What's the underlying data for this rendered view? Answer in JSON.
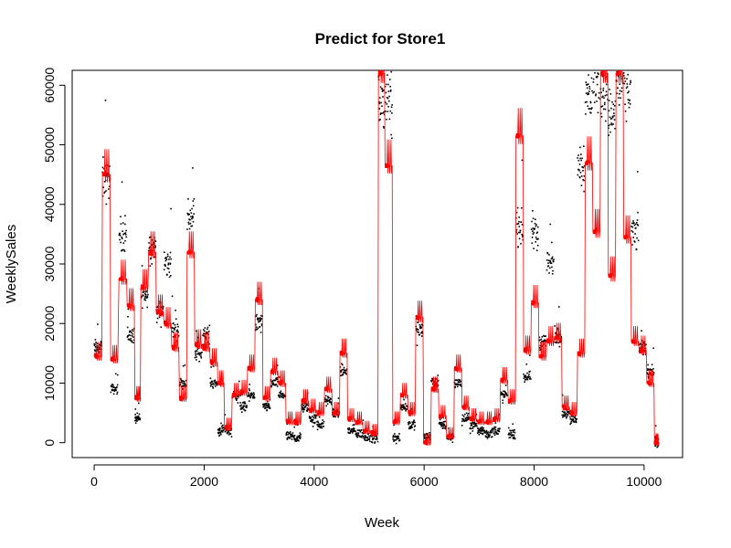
{
  "chart_data": {
    "type": "scatter",
    "title": "Predict for Store1",
    "xlabel": "Week",
    "ylabel": "WeeklySales",
    "xlim": [
      -400,
      10700
    ],
    "ylim": [
      -2500,
      62500
    ],
    "xticks": [
      0,
      2000,
      4000,
      6000,
      8000,
      10000
    ],
    "yticks": [
      0,
      10000,
      20000,
      30000,
      40000,
      50000,
      60000
    ],
    "grid": false,
    "series": [
      {
        "role": "actual",
        "color": "#000000",
        "style": "points",
        "segments": [
          {
            "x": [
              0,
              140
            ],
            "y": 16000
          },
          {
            "x": [
              150,
              290
            ],
            "y": 44000
          },
          {
            "x": [
              300,
              430
            ],
            "y": 9000
          },
          {
            "x": [
              450,
              590
            ],
            "y": 35000
          },
          {
            "x": [
              600,
              730
            ],
            "y": 18000
          },
          {
            "x": [
              740,
              840
            ],
            "y": 4000
          },
          {
            "x": [
              850,
              980
            ],
            "y": 25000
          },
          {
            "x": [
              990,
              1120
            ],
            "y": 33000
          },
          {
            "x": [
              1130,
              1260
            ],
            "y": 22000
          },
          {
            "x": [
              1270,
              1400
            ],
            "y": 30000
          },
          {
            "x": [
              1410,
              1540
            ],
            "y": 19000
          },
          {
            "x": [
              1550,
              1680
            ],
            "y": 10000
          },
          {
            "x": [
              1690,
              1820
            ],
            "y": 38000
          },
          {
            "x": [
              1830,
              1960
            ],
            "y": 15000
          },
          {
            "x": [
              1970,
              2100
            ],
            "y": 18000
          },
          {
            "x": [
              2110,
              2240
            ],
            "y": 10000
          },
          {
            "x": [
              2250,
              2360
            ],
            "y": 2000
          },
          {
            "x": [
              2370,
              2500
            ],
            "y": 2000
          },
          {
            "x": [
              2510,
              2640
            ],
            "y": 8000
          },
          {
            "x": [
              2650,
              2780
            ],
            "y": 6000
          },
          {
            "x": [
              2790,
              2920
            ],
            "y": 8000
          },
          {
            "x": [
              2930,
              3060
            ],
            "y": 20000
          },
          {
            "x": [
              3070,
              3200
            ],
            "y": 6000
          },
          {
            "x": [
              3210,
              3340
            ],
            "y": 10000
          },
          {
            "x": [
              3350,
              3480
            ],
            "y": 8000
          },
          {
            "x": [
              3490,
              3620
            ],
            "y": 1000
          },
          {
            "x": [
              3630,
              3760
            ],
            "y": 800
          },
          {
            "x": [
              3770,
              3900
            ],
            "y": 6000
          },
          {
            "x": [
              3910,
              4040
            ],
            "y": 4000
          },
          {
            "x": [
              4050,
              4180
            ],
            "y": 3000
          },
          {
            "x": [
              4190,
              4320
            ],
            "y": 7000
          },
          {
            "x": [
              4330,
              4460
            ],
            "y": 5000
          },
          {
            "x": [
              4470,
              4600
            ],
            "y": 12000
          },
          {
            "x": [
              4610,
              4740
            ],
            "y": 2000
          },
          {
            "x": [
              4750,
              4880
            ],
            "y": 1500
          },
          {
            "x": [
              4890,
              5020
            ],
            "y": 1000
          },
          {
            "x": [
              5030,
              5160
            ],
            "y": 800
          },
          {
            "x": [
              5170,
              5280
            ],
            "y": 57000
          },
          {
            "x": [
              5290,
              5420
            ],
            "y": 58000
          },
          {
            "x": [
              5430,
              5560
            ],
            "y": 1000
          },
          {
            "x": [
              5570,
              5700
            ],
            "y": 6000
          },
          {
            "x": [
              5710,
              5840
            ],
            "y": 3000
          },
          {
            "x": [
              5850,
              5980
            ],
            "y": 19000
          },
          {
            "x": [
              5990,
              6120
            ],
            "y": 1000
          },
          {
            "x": [
              6130,
              6260
            ],
            "y": 10000
          },
          {
            "x": [
              6270,
              6400
            ],
            "y": 3000
          },
          {
            "x": [
              6410,
              6540
            ],
            "y": 1000
          },
          {
            "x": [
              6550,
              6680
            ],
            "y": 10000
          },
          {
            "x": [
              6690,
              6820
            ],
            "y": 4000
          },
          {
            "x": [
              6830,
              6960
            ],
            "y": 3000
          },
          {
            "x": [
              6970,
              7100
            ],
            "y": 2000
          },
          {
            "x": [
              7110,
              7240
            ],
            "y": 1500
          },
          {
            "x": [
              7250,
              7380
            ],
            "y": 2000
          },
          {
            "x": [
              7390,
              7520
            ],
            "y": 8000
          },
          {
            "x": [
              7530,
              7660
            ],
            "y": 1500
          },
          {
            "x": [
              7670,
              7800
            ],
            "y": 36000
          },
          {
            "x": [
              7810,
              7940
            ],
            "y": 11000
          },
          {
            "x": [
              7950,
              8080
            ],
            "y": 35000
          },
          {
            "x": [
              8090,
              8220
            ],
            "y": 17000
          },
          {
            "x": [
              8230,
              8360
            ],
            "y": 30000
          },
          {
            "x": [
              8370,
              8500
            ],
            "y": 18000
          },
          {
            "x": [
              8510,
              8640
            ],
            "y": 5000
          },
          {
            "x": [
              8650,
              8780
            ],
            "y": 4000
          },
          {
            "x": [
              8790,
              8920
            ],
            "y": 47000
          },
          {
            "x": [
              8930,
              9060
            ],
            "y": 58000
          },
          {
            "x": [
              9070,
              9200
            ],
            "y": 61000
          },
          {
            "x": [
              9210,
              9340
            ],
            "y": 59000
          },
          {
            "x": [
              9350,
              9480
            ],
            "y": 55000
          },
          {
            "x": [
              9490,
              9620
            ],
            "y": 60000
          },
          {
            "x": [
              9630,
              9760
            ],
            "y": 59000
          },
          {
            "x": [
              9770,
              9900
            ],
            "y": 35000
          },
          {
            "x": [
              9910,
              10040
            ],
            "y": 16000
          },
          {
            "x": [
              10050,
              10180
            ],
            "y": 12000
          },
          {
            "x": [
              10190,
              10260
            ],
            "y": 0
          }
        ]
      },
      {
        "role": "predicted",
        "color": "#ff0000",
        "style": "line+points",
        "segments": [
          {
            "x": [
              0,
              140
            ],
            "y": 14500
          },
          {
            "x": [
              150,
              290
            ],
            "y": 45000
          },
          {
            "x": [
              300,
              430
            ],
            "y": 14000
          },
          {
            "x": [
              450,
              590
            ],
            "y": 27500
          },
          {
            "x": [
              600,
              730
            ],
            "y": 23000
          },
          {
            "x": [
              740,
              840
            ],
            "y": 7500
          },
          {
            "x": [
              850,
              980
            ],
            "y": 26000
          },
          {
            "x": [
              990,
              1120
            ],
            "y": 32000
          },
          {
            "x": [
              1130,
              1260
            ],
            "y": 22000
          },
          {
            "x": [
              1270,
              1400
            ],
            "y": 20000
          },
          {
            "x": [
              1410,
              1540
            ],
            "y": 16000
          },
          {
            "x": [
              1550,
              1680
            ],
            "y": 7500
          },
          {
            "x": [
              1690,
              1820
            ],
            "y": 32000
          },
          {
            "x": [
              1830,
              1960
            ],
            "y": 16500
          },
          {
            "x": [
              1970,
              2100
            ],
            "y": 16000
          },
          {
            "x": [
              2110,
              2240
            ],
            "y": 13500
          },
          {
            "x": [
              2250,
              2360
            ],
            "y": 10000
          },
          {
            "x": [
              2370,
              2500
            ],
            "y": 2500
          },
          {
            "x": [
              2510,
              2640
            ],
            "y": 8000
          },
          {
            "x": [
              2650,
              2780
            ],
            "y": 8500
          },
          {
            "x": [
              2790,
              2920
            ],
            "y": 12500
          },
          {
            "x": [
              2930,
              3060
            ],
            "y": 24000
          },
          {
            "x": [
              3070,
              3200
            ],
            "y": 7500
          },
          {
            "x": [
              3210,
              3340
            ],
            "y": 12000
          },
          {
            "x": [
              3350,
              3480
            ],
            "y": 10000
          },
          {
            "x": [
              3490,
              3620
            ],
            "y": 3500
          },
          {
            "x": [
              3630,
              3760
            ],
            "y": 3500
          },
          {
            "x": [
              3770,
              3900
            ],
            "y": 7000
          },
          {
            "x": [
              3910,
              4040
            ],
            "y": 5500
          },
          {
            "x": [
              4050,
              4180
            ],
            "y": 5000
          },
          {
            "x": [
              4190,
              4320
            ],
            "y": 9000
          },
          {
            "x": [
              4330,
              4460
            ],
            "y": 5000
          },
          {
            "x": [
              4470,
              4600
            ],
            "y": 15000
          },
          {
            "x": [
              4610,
              4740
            ],
            "y": 4000
          },
          {
            "x": [
              4750,
              4880
            ],
            "y": 3500
          },
          {
            "x": [
              4890,
              5020
            ],
            "y": 2000
          },
          {
            "x": [
              5030,
              5160
            ],
            "y": 1500
          },
          {
            "x": [
              5170,
              5280
            ],
            "y": 62000
          },
          {
            "x": [
              5290,
              5420
            ],
            "y": 46500
          },
          {
            "x": [
              5430,
              5560
            ],
            "y": 3500
          },
          {
            "x": [
              5570,
              5700
            ],
            "y": 8000
          },
          {
            "x": [
              5710,
              5840
            ],
            "y": 5000
          },
          {
            "x": [
              5850,
              5980
            ],
            "y": 21000
          },
          {
            "x": [
              5990,
              6120
            ],
            "y": 0
          },
          {
            "x": [
              6130,
              6260
            ],
            "y": 9000
          },
          {
            "x": [
              6270,
              6400
            ],
            "y": 4500
          },
          {
            "x": [
              6410,
              6540
            ],
            "y": 1000
          },
          {
            "x": [
              6550,
              6680
            ],
            "y": 12500
          },
          {
            "x": [
              6690,
              6820
            ],
            "y": 6000
          },
          {
            "x": [
              6830,
              6960
            ],
            "y": 4000
          },
          {
            "x": [
              6970,
              7100
            ],
            "y": 3500
          },
          {
            "x": [
              7110,
              7240
            ],
            "y": 3500
          },
          {
            "x": [
              7250,
              7380
            ],
            "y": 4000
          },
          {
            "x": [
              7390,
              7520
            ],
            "y": 10500
          },
          {
            "x": [
              7530,
              7660
            ],
            "y": 7000
          },
          {
            "x": [
              7670,
              7800
            ],
            "y": 51500
          },
          {
            "x": [
              7810,
              7940
            ],
            "y": 15500
          },
          {
            "x": [
              7950,
              8080
            ],
            "y": 23500
          },
          {
            "x": [
              8090,
              8220
            ],
            "y": 14500
          },
          {
            "x": [
              8230,
              8360
            ],
            "y": 17000
          },
          {
            "x": [
              8370,
              8500
            ],
            "y": 17500
          },
          {
            "x": [
              8510,
              8640
            ],
            "y": 6000
          },
          {
            "x": [
              8650,
              8780
            ],
            "y": 5000
          },
          {
            "x": [
              8790,
              8920
            ],
            "y": 15000
          },
          {
            "x": [
              8930,
              9060
            ],
            "y": 47000
          },
          {
            "x": [
              9070,
              9200
            ],
            "y": 35500
          },
          {
            "x": [
              9210,
              9340
            ],
            "y": 62000
          },
          {
            "x": [
              9350,
              9480
            ],
            "y": 28000
          },
          {
            "x": [
              9490,
              9620
            ],
            "y": 62000
          },
          {
            "x": [
              9630,
              9760
            ],
            "y": 34500
          },
          {
            "x": [
              9770,
              9900
            ],
            "y": 17000
          },
          {
            "x": [
              9910,
              10040
            ],
            "y": 15500
          },
          {
            "x": [
              10050,
              10180
            ],
            "y": 10000
          },
          {
            "x": [
              10190,
              10260
            ],
            "y": 0
          }
        ]
      }
    ]
  }
}
